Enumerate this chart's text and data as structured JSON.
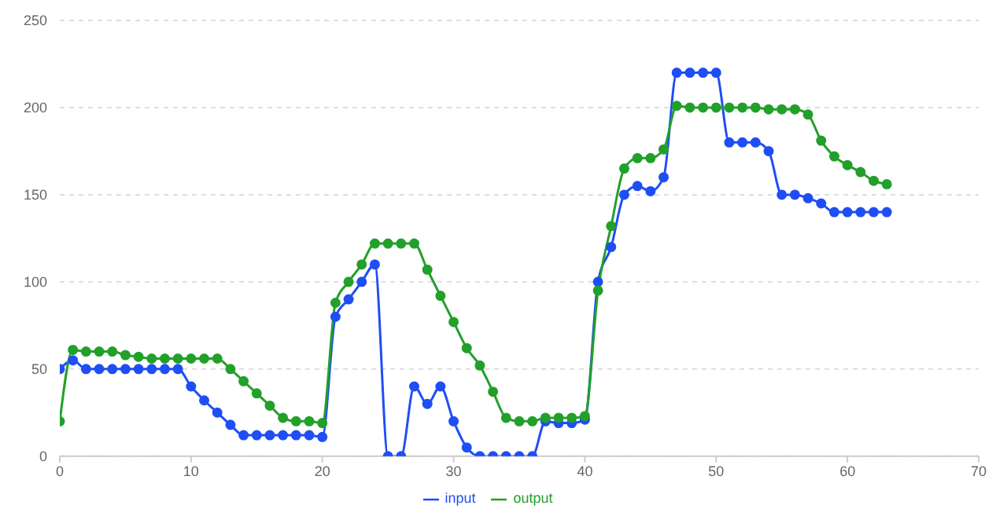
{
  "chart_data": {
    "type": "line",
    "x": [
      0,
      1,
      2,
      3,
      4,
      5,
      6,
      7,
      8,
      9,
      10,
      11,
      12,
      13,
      14,
      15,
      16,
      17,
      18,
      19,
      20,
      21,
      22,
      23,
      24,
      25,
      26,
      27,
      28,
      29,
      30,
      31,
      32,
      33,
      34,
      35,
      36,
      37,
      38,
      39,
      40,
      41,
      42,
      43,
      44,
      45,
      46,
      47,
      48,
      49,
      50,
      51,
      52,
      53,
      54,
      55,
      56,
      57,
      58,
      59,
      60,
      61,
      62,
      63
    ],
    "series": [
      {
        "name": "input",
        "color": "#1f4ef5",
        "values": [
          50,
          55,
          50,
          50,
          50,
          50,
          50,
          50,
          50,
          50,
          40,
          32,
          25,
          18,
          12,
          12,
          12,
          12,
          12,
          12,
          11,
          80,
          90,
          100,
          110,
          0,
          0,
          40,
          30,
          40,
          20,
          5,
          0,
          0,
          0,
          0,
          0,
          20,
          19,
          19,
          21,
          100,
          120,
          150,
          155,
          152,
          160,
          220,
          220,
          220,
          220,
          180,
          180,
          180,
          175,
          150,
          150,
          148,
          145,
          140,
          140,
          140,
          140,
          140
        ]
      },
      {
        "name": "output",
        "color": "#22a02a",
        "values": [
          20,
          61,
          60,
          60,
          60,
          58,
          57,
          56,
          56,
          56,
          56,
          56,
          56,
          50,
          43,
          36,
          29,
          22,
          20,
          20,
          19,
          88,
          100,
          110,
          122,
          122,
          122,
          122,
          107,
          92,
          77,
          62,
          52,
          37,
          22,
          20,
          20,
          22,
          22,
          22,
          23,
          95,
          132,
          165,
          171,
          171,
          176,
          201,
          200,
          200,
          200,
          200,
          200,
          200,
          199,
          199,
          199,
          196,
          181,
          172,
          167,
          163,
          158,
          156
        ]
      }
    ],
    "xlim": [
      0,
      70
    ],
    "xticks": [
      0,
      10,
      20,
      30,
      40,
      50,
      60,
      70
    ],
    "ylim": [
      0,
      250
    ],
    "yticks": [
      0,
      50,
      100,
      150,
      200,
      250
    ],
    "grid": "y",
    "legend": "bottom",
    "marker": "circle",
    "line_style": "solid"
  }
}
